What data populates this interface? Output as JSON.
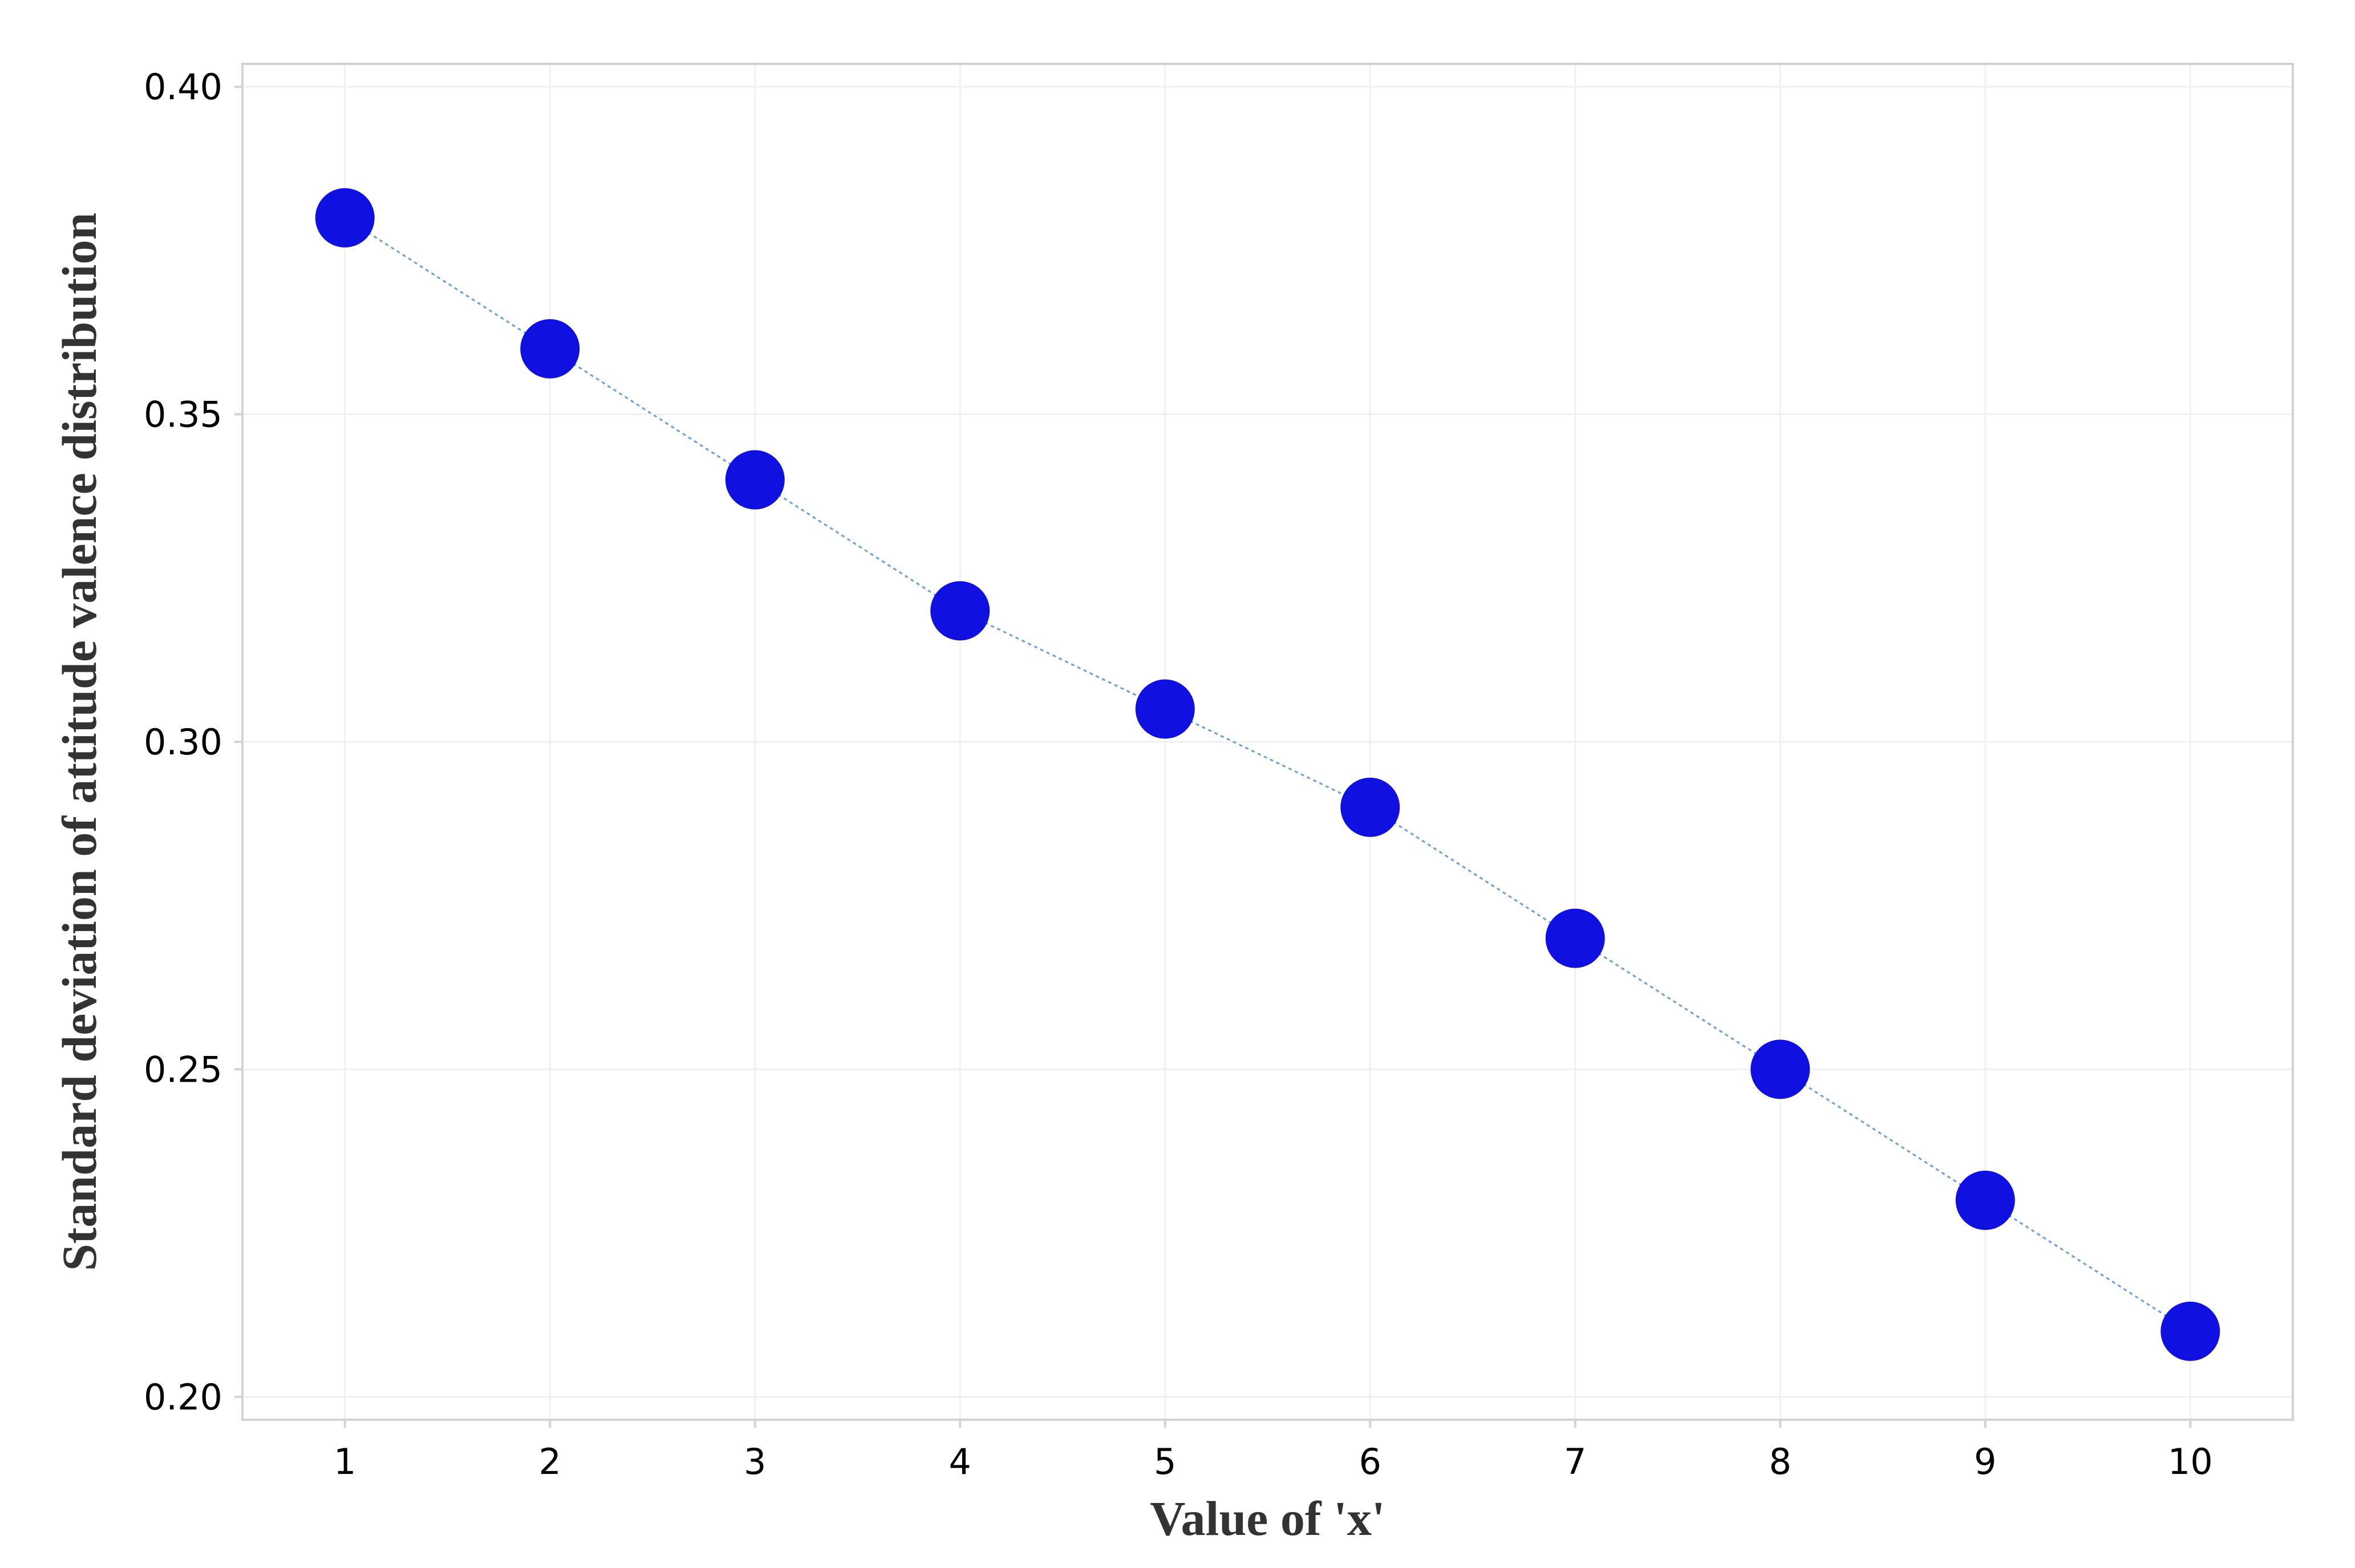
{
  "chart_data": {
    "type": "scatter",
    "title": "",
    "xlabel": "Value of 'x'",
    "ylabel": "Standard deviation of attitude valence distribution",
    "x": [
      1,
      2,
      3,
      4,
      5,
      6,
      7,
      8,
      9,
      10
    ],
    "series": [
      {
        "values": [
          0.38,
          0.36,
          0.34,
          0.32,
          0.305,
          0.29,
          0.27,
          0.25,
          0.23,
          0.21
        ],
        "color": "#1010E0",
        "line_color": "#6A9FD8",
        "line_style": "dotted"
      }
    ],
    "x_ticks": [
      "1",
      "2",
      "3",
      "4",
      "5",
      "6",
      "7",
      "8",
      "9",
      "10"
    ],
    "y_ticks": [
      "0.20",
      "0.25",
      "0.30",
      "0.35",
      "0.40"
    ],
    "y_tick_values": [
      0.2,
      0.25,
      0.3,
      0.35,
      0.4
    ],
    "xlim": [
      0.5,
      10.5
    ],
    "ylim": [
      0.1965,
      0.4035
    ],
    "grid": true,
    "legend": "none",
    "colors": {
      "background": "#FFFFFF",
      "frame": "#D3D3D3",
      "grid": "#F0F0F0",
      "marker": "#1010E0",
      "connector": "#6A9FD8"
    }
  }
}
